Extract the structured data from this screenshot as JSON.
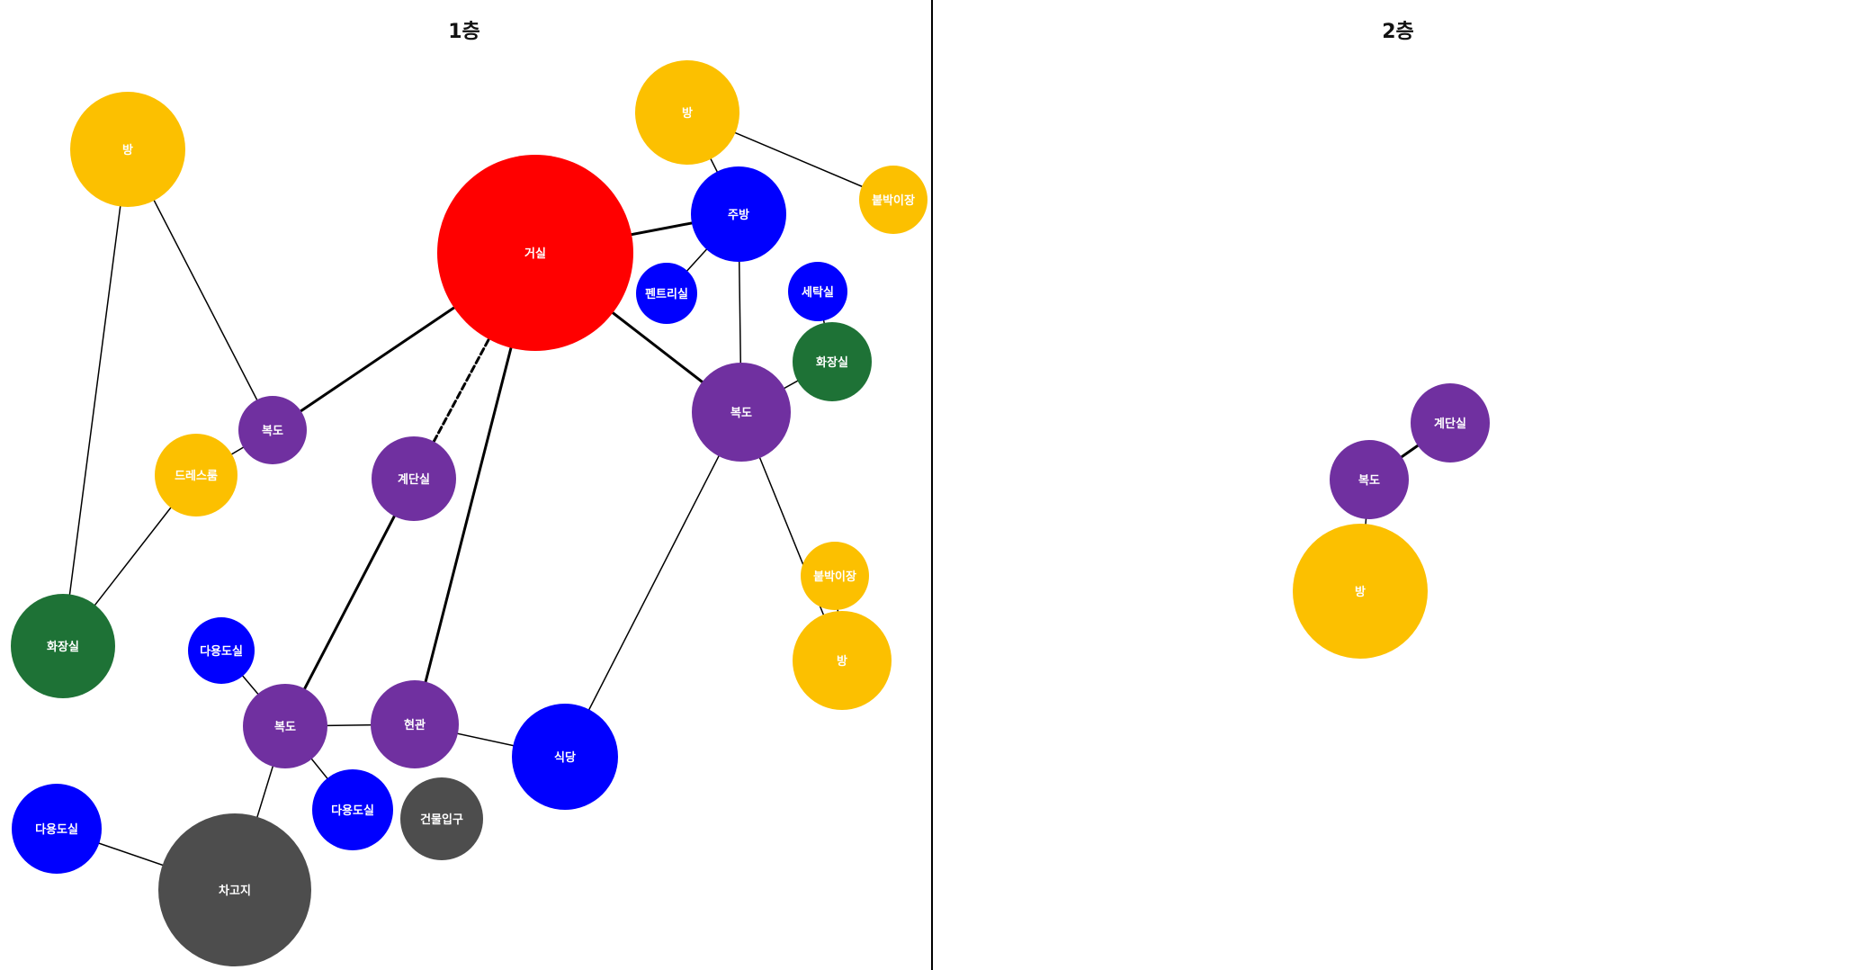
{
  "colors": {
    "living": "#ff0000",
    "room": "#fcc000",
    "kitchen": "#0000ff",
    "corridor": "#7030a0",
    "bathroom": "#1e7236",
    "entrance": "#4d4d4d",
    "line": "#000000",
    "divider": "#000000"
  },
  "floors": [
    {
      "title": "1층",
      "nodes": [
        {
          "id": "f1-room-topleft",
          "label": "방",
          "type": "room"
        },
        {
          "id": "f1-living",
          "label": "거실",
          "type": "living"
        },
        {
          "id": "f1-room-top",
          "label": "방",
          "type": "room"
        },
        {
          "id": "f1-kitchen",
          "label": "주방",
          "type": "kitchen"
        },
        {
          "id": "f1-closet-top",
          "label": "붙박이장",
          "type": "room"
        },
        {
          "id": "f1-pantry",
          "label": "펜트리실",
          "type": "kitchen"
        },
        {
          "id": "f1-laundry",
          "label": "세탁실",
          "type": "kitchen"
        },
        {
          "id": "f1-bath-right",
          "label": "화장실",
          "type": "bathroom"
        },
        {
          "id": "f1-corridor-right",
          "label": "복도",
          "type": "corridor"
        },
        {
          "id": "f1-corridor-left",
          "label": "복도",
          "type": "corridor"
        },
        {
          "id": "f1-dressroom",
          "label": "드레스룸",
          "type": "room"
        },
        {
          "id": "f1-stairs",
          "label": "계단실",
          "type": "corridor"
        },
        {
          "id": "f1-closet-mid",
          "label": "붙박이장",
          "type": "room"
        },
        {
          "id": "f1-room-right",
          "label": "방",
          "type": "room"
        },
        {
          "id": "f1-bath-left",
          "label": "화장실",
          "type": "bathroom"
        },
        {
          "id": "f1-multi-1",
          "label": "다용도실",
          "type": "kitchen"
        },
        {
          "id": "f1-corridor-bottom",
          "label": "복도",
          "type": "corridor"
        },
        {
          "id": "f1-entrance",
          "label": "현관",
          "type": "corridor"
        },
        {
          "id": "f1-dining",
          "label": "식당",
          "type": "kitchen"
        },
        {
          "id": "f1-multi-2",
          "label": "다용도실",
          "type": "kitchen"
        },
        {
          "id": "f1-bldg-entry",
          "label": "건물입구",
          "type": "entrance"
        },
        {
          "id": "f1-multi-3",
          "label": "다용도실",
          "type": "kitchen"
        },
        {
          "id": "f1-garage",
          "label": "차고지",
          "type": "entrance"
        }
      ],
      "edges": [
        {
          "from": "f1-room-topleft",
          "to": "f1-bath-left",
          "style": "thin"
        },
        {
          "from": "f1-room-topleft",
          "to": "f1-corridor-left",
          "style": "thin"
        },
        {
          "from": "f1-corridor-left",
          "to": "f1-living",
          "style": "thick"
        },
        {
          "from": "f1-corridor-left",
          "to": "f1-dressroom",
          "style": "thin"
        },
        {
          "from": "f1-dressroom",
          "to": "f1-bath-left",
          "style": "thin"
        },
        {
          "from": "f1-living",
          "to": "f1-kitchen",
          "style": "thick"
        },
        {
          "from": "f1-living",
          "to": "f1-corridor-right",
          "style": "thick"
        },
        {
          "from": "f1-living",
          "to": "f1-stairs",
          "style": "dashed"
        },
        {
          "from": "f1-living",
          "to": "f1-entrance",
          "style": "thick"
        },
        {
          "from": "f1-room-top",
          "to": "f1-closet-top",
          "style": "thin"
        },
        {
          "from": "f1-room-top",
          "to": "f1-kitchen",
          "style": "thin"
        },
        {
          "from": "f1-kitchen",
          "to": "f1-pantry",
          "style": "thin"
        },
        {
          "from": "f1-kitchen",
          "to": "f1-corridor-right",
          "style": "thin"
        },
        {
          "from": "f1-laundry",
          "to": "f1-bath-right",
          "style": "thin"
        },
        {
          "from": "f1-bath-right",
          "to": "f1-corridor-right",
          "style": "thin"
        },
        {
          "from": "f1-corridor-right",
          "to": "f1-room-right",
          "style": "thin"
        },
        {
          "from": "f1-corridor-right",
          "to": "f1-dining",
          "style": "thin"
        },
        {
          "from": "f1-closet-mid",
          "to": "f1-room-right",
          "style": "thin"
        },
        {
          "from": "f1-stairs",
          "to": "f1-corridor-bottom",
          "style": "thick"
        },
        {
          "from": "f1-multi-1",
          "to": "f1-corridor-bottom",
          "style": "thin"
        },
        {
          "from": "f1-corridor-bottom",
          "to": "f1-entrance",
          "style": "thin"
        },
        {
          "from": "f1-corridor-bottom",
          "to": "f1-multi-2",
          "style": "thin"
        },
        {
          "from": "f1-corridor-bottom",
          "to": "f1-garage",
          "style": "thin"
        },
        {
          "from": "f1-entrance",
          "to": "f1-dining",
          "style": "thin"
        },
        {
          "from": "f1-multi-3",
          "to": "f1-garage",
          "style": "thin"
        }
      ]
    },
    {
      "title": "2층",
      "nodes": [
        {
          "id": "f2-stairs",
          "label": "계단실",
          "type": "corridor"
        },
        {
          "id": "f2-corridor",
          "label": "복도",
          "type": "corridor"
        },
        {
          "id": "f2-room",
          "label": "방",
          "type": "room"
        }
      ],
      "edges": [
        {
          "from": "f2-corridor",
          "to": "f2-stairs",
          "style": "thick"
        },
        {
          "from": "f2-corridor",
          "to": "f2-room",
          "style": "thin"
        }
      ]
    }
  ]
}
